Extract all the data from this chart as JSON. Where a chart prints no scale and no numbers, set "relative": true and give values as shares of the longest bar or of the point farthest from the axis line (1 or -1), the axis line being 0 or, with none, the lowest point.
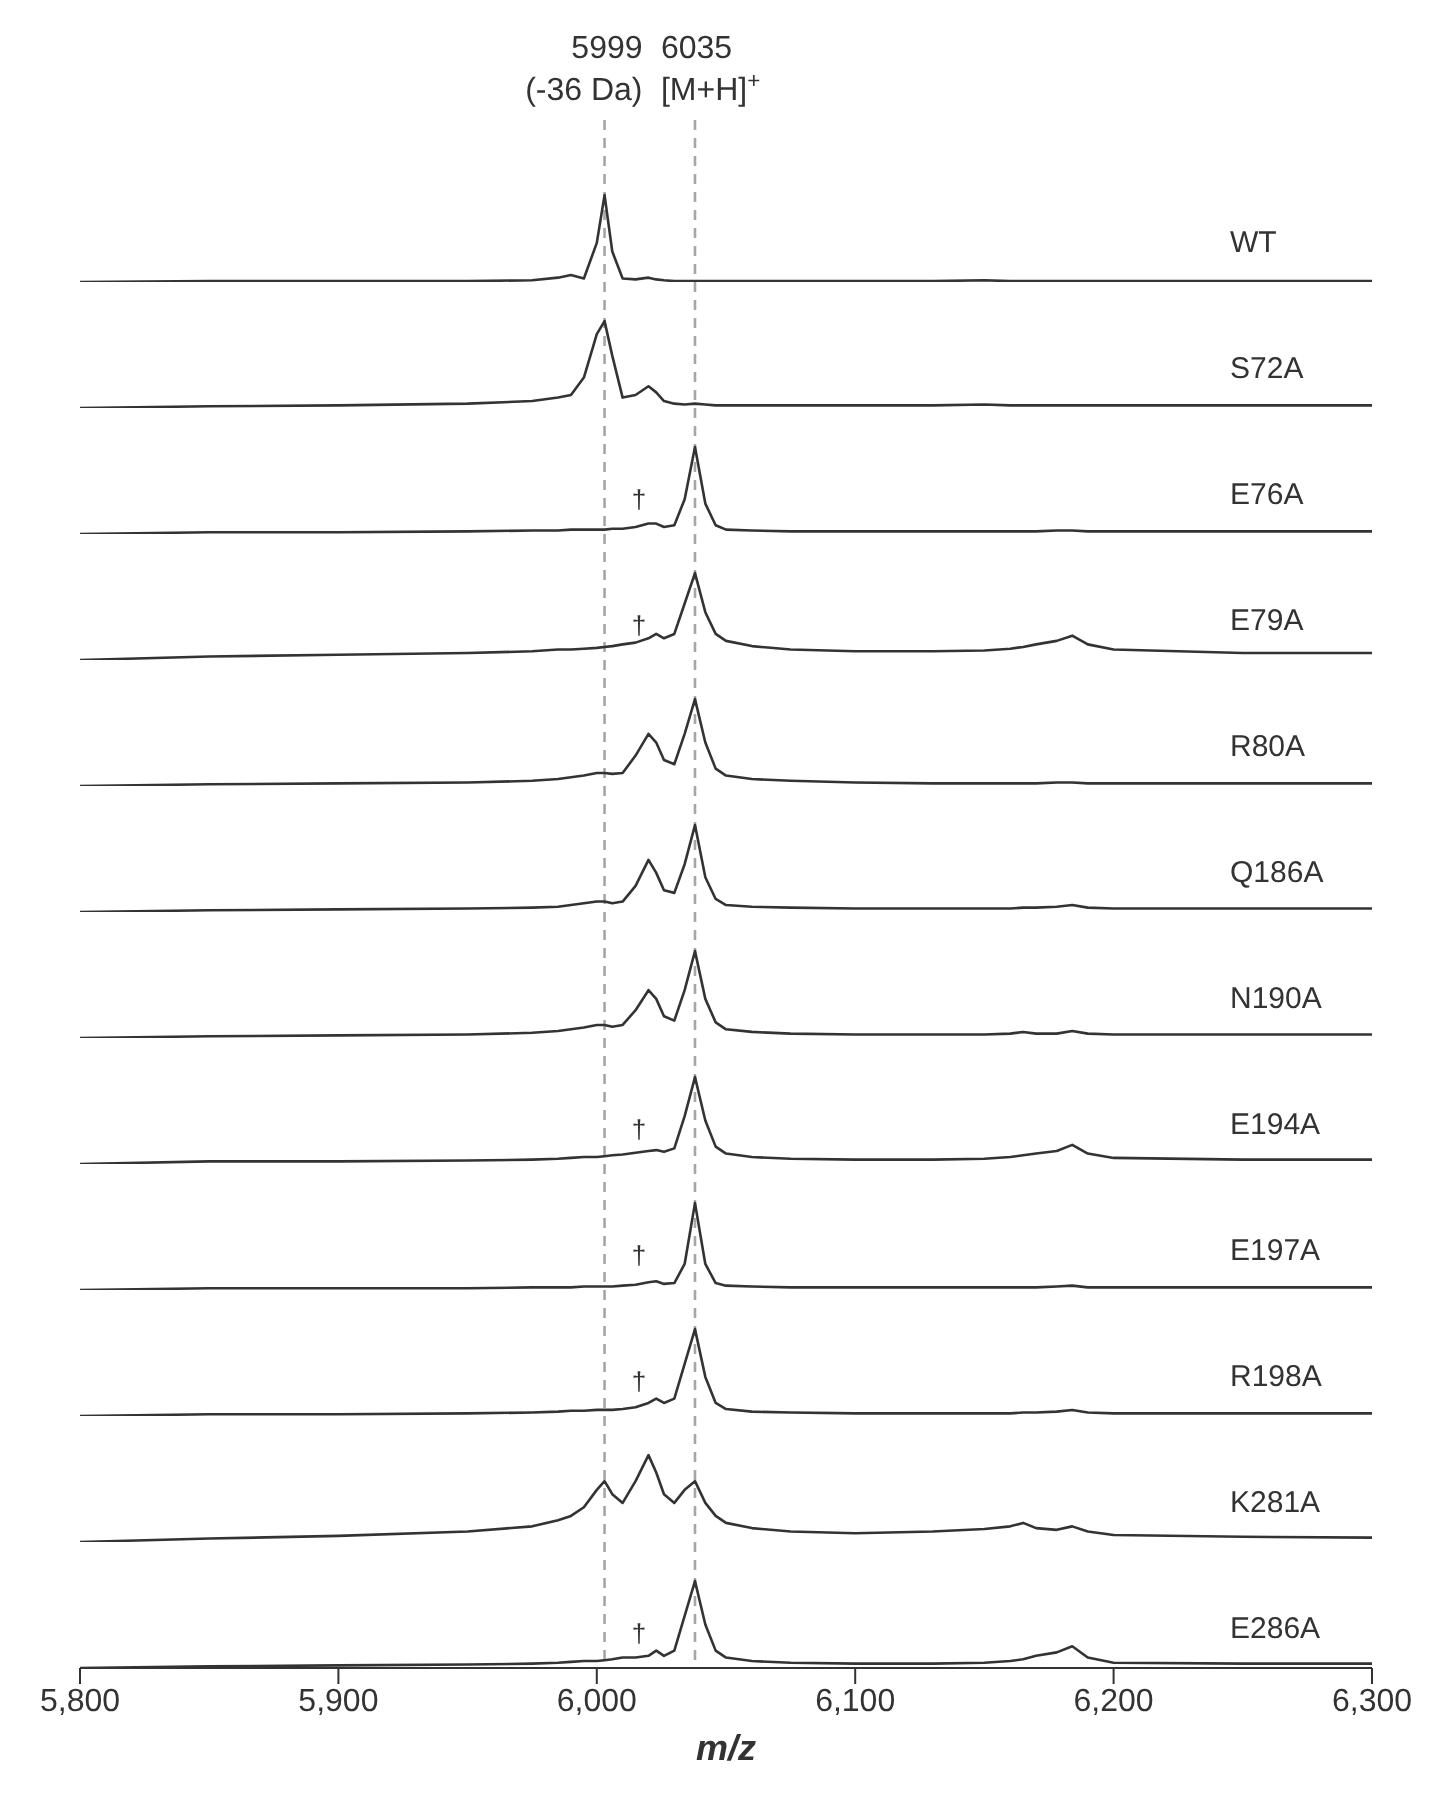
{
  "chart_data": [
    {
      "type": "line",
      "relative": true,
      "xlim": [
        5800,
        6300
      ],
      "tick_labels": false,
      "x": [
        5800,
        5850,
        5900,
        5950,
        5975,
        5985,
        5990,
        5995,
        6000,
        6003,
        6006,
        6010,
        6015,
        6020,
        6023,
        6026,
        6030,
        6034,
        6038,
        6042,
        6046,
        6050,
        6060,
        6075,
        6100,
        6130,
        6150,
        6160,
        6165,
        6170,
        6178,
        6184,
        6190,
        6200,
        6250,
        6300
      ],
      "series": [
        {
          "name": "WT",
          "color": "#333333",
          "values": [
            0,
            0.01,
            0.01,
            0.01,
            0.02,
            0.05,
            0.08,
            0.04,
            0.45,
            1,
            0.35,
            0.04,
            0.03,
            0.05,
            0.03,
            0.02,
            0.01,
            0.01,
            0.01,
            0.01,
            0.01,
            0.01,
            0.01,
            0.01,
            0.01,
            0.01,
            0.02,
            0.01,
            0.01,
            0.01,
            0.01,
            0.01,
            0.01,
            0.01,
            0.01,
            0.01
          ]
        }
      ],
      "ref_lines": [
        {
          "axis": "x",
          "value": 6003,
          "label": "5999\n(-36 Da)",
          "color": "#a6a6a6",
          "line_style": "dashed"
        },
        {
          "axis": "x",
          "value": 6038,
          "label": "6035\n[M+H]$^{+}$",
          "color": "#a6a6a6",
          "line_style": "dashed"
        }
      ]
    },
    {
      "type": "line",
      "relative": true,
      "xlim": [
        5800,
        6300
      ],
      "tick_labels": false,
      "x": [
        5800,
        5850,
        5900,
        5950,
        5975,
        5985,
        5990,
        5995,
        6000,
        6003,
        6006,
        6010,
        6015,
        6020,
        6023,
        6026,
        6030,
        6034,
        6038,
        6042,
        6046,
        6050,
        6060,
        6075,
        6100,
        6130,
        6150,
        6160,
        6165,
        6170,
        6178,
        6184,
        6190,
        6200,
        6250,
        6300
      ],
      "series": [
        {
          "name": "S72A",
          "color": "#333333",
          "values": [
            0,
            0.02,
            0.03,
            0.05,
            0.08,
            0.12,
            0.15,
            0.35,
            0.85,
            1,
            0.6,
            0.12,
            0.15,
            0.25,
            0.18,
            0.08,
            0.05,
            0.04,
            0.05,
            0.04,
            0.03,
            0.03,
            0.03,
            0.03,
            0.03,
            0.03,
            0.04,
            0.03,
            0.03,
            0.03,
            0.03,
            0.03,
            0.03,
            0.03,
            0.03,
            0.03
          ]
        }
      ],
      "ref_lines": [
        {
          "axis": "x",
          "value": 6003,
          "color": "#a6a6a6",
          "line_style": "dashed"
        },
        {
          "axis": "x",
          "value": 6038,
          "color": "#a6a6a6",
          "line_style": "dashed"
        }
      ]
    },
    {
      "type": "line",
      "relative": true,
      "xlim": [
        5800,
        6300
      ],
      "tick_labels": false,
      "x": [
        5800,
        5850,
        5900,
        5950,
        5975,
        5985,
        5990,
        5995,
        6000,
        6003,
        6006,
        6010,
        6015,
        6020,
        6023,
        6026,
        6030,
        6034,
        6038,
        6042,
        6046,
        6050,
        6060,
        6075,
        6100,
        6130,
        6150,
        6160,
        6165,
        6170,
        6178,
        6184,
        6190,
        6200,
        6250,
        6300
      ],
      "series": [
        {
          "name": "E76A",
          "color": "#333333",
          "values": [
            0,
            0.02,
            0.02,
            0.03,
            0.04,
            0.04,
            0.05,
            0.05,
            0.05,
            0.05,
            0.06,
            0.06,
            0.08,
            0.12,
            0.12,
            0.08,
            0.1,
            0.4,
            1,
            0.35,
            0.1,
            0.05,
            0.04,
            0.03,
            0.03,
            0.03,
            0.03,
            0.03,
            0.03,
            0.03,
            0.04,
            0.04,
            0.03,
            0.03,
            0.03,
            0.03
          ]
        }
      ],
      "ref_lines": [
        {
          "axis": "x",
          "value": 6003,
          "color": "#a6a6a6",
          "line_style": "dashed"
        },
        {
          "axis": "x",
          "value": 6038,
          "color": "#a6a6a6",
          "line_style": "dashed"
        }
      ],
      "annotations": [
        "†"
      ]
    },
    {
      "type": "line",
      "relative": true,
      "xlim": [
        5800,
        6300
      ],
      "tick_labels": false,
      "x": [
        5800,
        5850,
        5900,
        5950,
        5975,
        5985,
        5990,
        5995,
        6000,
        6003,
        6006,
        6010,
        6015,
        6020,
        6023,
        6026,
        6030,
        6034,
        6038,
        6042,
        6046,
        6050,
        6060,
        6075,
        6100,
        6130,
        6150,
        6160,
        6165,
        6170,
        6178,
        6184,
        6190,
        6200,
        6250,
        6300
      ],
      "series": [
        {
          "name": "E79A",
          "color": "#333333",
          "values": [
            0,
            0.04,
            0.06,
            0.08,
            0.1,
            0.12,
            0.12,
            0.13,
            0.14,
            0.15,
            0.16,
            0.18,
            0.2,
            0.25,
            0.3,
            0.25,
            0.3,
            0.65,
            1,
            0.55,
            0.3,
            0.22,
            0.16,
            0.12,
            0.1,
            0.1,
            0.11,
            0.13,
            0.15,
            0.18,
            0.22,
            0.28,
            0.18,
            0.12,
            0.08,
            0.08
          ]
        }
      ],
      "ref_lines": [
        {
          "axis": "x",
          "value": 6003,
          "color": "#a6a6a6",
          "line_style": "dashed"
        },
        {
          "axis": "x",
          "value": 6038,
          "color": "#a6a6a6",
          "line_style": "dashed"
        }
      ],
      "annotations": [
        "†"
      ]
    },
    {
      "type": "line",
      "relative": true,
      "xlim": [
        5800,
        6300
      ],
      "tick_labels": false,
      "x": [
        5800,
        5850,
        5900,
        5950,
        5975,
        5985,
        5990,
        5995,
        6000,
        6003,
        6006,
        6010,
        6015,
        6020,
        6023,
        6026,
        6030,
        6034,
        6038,
        6042,
        6046,
        6050,
        6060,
        6075,
        6100,
        6130,
        6150,
        6160,
        6165,
        6170,
        6178,
        6184,
        6190,
        6200,
        6250,
        6300
      ],
      "series": [
        {
          "name": "R80A",
          "color": "#333333",
          "values": [
            0,
            0.02,
            0.03,
            0.04,
            0.06,
            0.08,
            0.1,
            0.12,
            0.15,
            0.15,
            0.14,
            0.15,
            0.35,
            0.6,
            0.5,
            0.3,
            0.25,
            0.6,
            1,
            0.5,
            0.2,
            0.12,
            0.08,
            0.06,
            0.04,
            0.03,
            0.03,
            0.03,
            0.03,
            0.03,
            0.04,
            0.04,
            0.03,
            0.03,
            0.03,
            0.03
          ]
        }
      ],
      "ref_lines": [
        {
          "axis": "x",
          "value": 6003,
          "color": "#a6a6a6",
          "line_style": "dashed"
        },
        {
          "axis": "x",
          "value": 6038,
          "color": "#a6a6a6",
          "line_style": "dashed"
        }
      ]
    },
    {
      "type": "line",
      "relative": true,
      "xlim": [
        5800,
        6300
      ],
      "tick_labels": false,
      "x": [
        5800,
        5850,
        5900,
        5950,
        5975,
        5985,
        5990,
        5995,
        6000,
        6003,
        6006,
        6010,
        6015,
        6020,
        6023,
        6026,
        6030,
        6034,
        6038,
        6042,
        6046,
        6050,
        6060,
        6075,
        6100,
        6130,
        6150,
        6160,
        6165,
        6170,
        6178,
        6184,
        6190,
        6200,
        6250,
        6300
      ],
      "series": [
        {
          "name": "Q186A",
          "color": "#333333",
          "values": [
            0,
            0.02,
            0.03,
            0.04,
            0.05,
            0.06,
            0.08,
            0.1,
            0.12,
            0.12,
            0.1,
            0.12,
            0.3,
            0.6,
            0.45,
            0.25,
            0.22,
            0.55,
            1,
            0.4,
            0.15,
            0.08,
            0.06,
            0.05,
            0.04,
            0.04,
            0.04,
            0.04,
            0.05,
            0.05,
            0.06,
            0.08,
            0.05,
            0.04,
            0.04,
            0.04
          ]
        }
      ],
      "ref_lines": [
        {
          "axis": "x",
          "value": 6003,
          "color": "#a6a6a6",
          "line_style": "dashed"
        },
        {
          "axis": "x",
          "value": 6038,
          "color": "#a6a6a6",
          "line_style": "dashed"
        }
      ]
    },
    {
      "type": "line",
      "relative": true,
      "xlim": [
        5800,
        6300
      ],
      "tick_labels": false,
      "x": [
        5800,
        5850,
        5900,
        5950,
        5975,
        5985,
        5990,
        5995,
        6000,
        6003,
        6006,
        6010,
        6015,
        6020,
        6023,
        6026,
        6030,
        6034,
        6038,
        6042,
        6046,
        6050,
        6060,
        6075,
        6100,
        6130,
        6150,
        6160,
        6165,
        6170,
        6178,
        6184,
        6190,
        6200,
        6250,
        6300
      ],
      "series": [
        {
          "name": "N190A",
          "color": "#333333",
          "values": [
            0,
            0.02,
            0.03,
            0.04,
            0.06,
            0.08,
            0.1,
            0.12,
            0.15,
            0.15,
            0.13,
            0.15,
            0.32,
            0.55,
            0.45,
            0.25,
            0.2,
            0.55,
            1,
            0.45,
            0.18,
            0.1,
            0.07,
            0.05,
            0.04,
            0.04,
            0.04,
            0.05,
            0.07,
            0.05,
            0.05,
            0.08,
            0.05,
            0.04,
            0.04,
            0.04
          ]
        }
      ],
      "ref_lines": [
        {
          "axis": "x",
          "value": 6003,
          "color": "#a6a6a6",
          "line_style": "dashed"
        },
        {
          "axis": "x",
          "value": 6038,
          "color": "#a6a6a6",
          "line_style": "dashed"
        }
      ]
    },
    {
      "type": "line",
      "relative": true,
      "xlim": [
        5800,
        6300
      ],
      "tick_labels": false,
      "x": [
        5800,
        5850,
        5900,
        5950,
        5975,
        5985,
        5990,
        5995,
        6000,
        6003,
        6006,
        6010,
        6015,
        6020,
        6023,
        6026,
        6030,
        6034,
        6038,
        6042,
        6046,
        6050,
        6060,
        6075,
        6100,
        6130,
        6150,
        6160,
        6165,
        6170,
        6178,
        6184,
        6190,
        6200,
        6250,
        6300
      ],
      "series": [
        {
          "name": "E194A",
          "color": "#333333",
          "values": [
            0,
            0.03,
            0.03,
            0.04,
            0.05,
            0.06,
            0.07,
            0.08,
            0.08,
            0.09,
            0.1,
            0.11,
            0.13,
            0.15,
            0.16,
            0.14,
            0.18,
            0.55,
            1,
            0.5,
            0.2,
            0.12,
            0.08,
            0.06,
            0.05,
            0.05,
            0.06,
            0.08,
            0.1,
            0.12,
            0.15,
            0.22,
            0.12,
            0.07,
            0.05,
            0.05
          ]
        }
      ],
      "ref_lines": [
        {
          "axis": "x",
          "value": 6003,
          "color": "#a6a6a6",
          "line_style": "dashed"
        },
        {
          "axis": "x",
          "value": 6038,
          "color": "#a6a6a6",
          "line_style": "dashed"
        }
      ],
      "annotations": [
        "†"
      ]
    },
    {
      "type": "line",
      "relative": true,
      "xlim": [
        5800,
        6300
      ],
      "tick_labels": false,
      "x": [
        5800,
        5850,
        5900,
        5950,
        5975,
        5985,
        5990,
        5995,
        6000,
        6003,
        6006,
        6010,
        6015,
        6020,
        6023,
        6026,
        6030,
        6034,
        6038,
        6042,
        6046,
        6050,
        6060,
        6075,
        6100,
        6130,
        6150,
        6160,
        6165,
        6170,
        6178,
        6184,
        6190,
        6200,
        6250,
        6300
      ],
      "series": [
        {
          "name": "E197A",
          "color": "#333333",
          "values": [
            0,
            0.02,
            0.02,
            0.02,
            0.03,
            0.03,
            0.03,
            0.04,
            0.04,
            0.04,
            0.04,
            0.05,
            0.06,
            0.09,
            0.1,
            0.07,
            0.08,
            0.3,
            1,
            0.3,
            0.08,
            0.05,
            0.04,
            0.03,
            0.03,
            0.03,
            0.03,
            0.03,
            0.03,
            0.03,
            0.04,
            0.05,
            0.03,
            0.03,
            0.03,
            0.03
          ]
        }
      ],
      "ref_lines": [
        {
          "axis": "x",
          "value": 6003,
          "color": "#a6a6a6",
          "line_style": "dashed"
        },
        {
          "axis": "x",
          "value": 6038,
          "color": "#a6a6a6",
          "line_style": "dashed"
        }
      ],
      "annotations": [
        "†"
      ]
    },
    {
      "type": "line",
      "relative": true,
      "xlim": [
        5800,
        6300
      ],
      "tick_labels": false,
      "x": [
        5800,
        5850,
        5900,
        5950,
        5975,
        5985,
        5990,
        5995,
        6000,
        6003,
        6006,
        6010,
        6015,
        6020,
        6023,
        6026,
        6030,
        6034,
        6038,
        6042,
        6046,
        6050,
        6060,
        6075,
        6100,
        6130,
        6150,
        6160,
        6165,
        6170,
        6178,
        6184,
        6190,
        6200,
        6250,
        6300
      ],
      "series": [
        {
          "name": "R198A",
          "color": "#333333",
          "values": [
            0,
            0.02,
            0.02,
            0.03,
            0.04,
            0.05,
            0.06,
            0.06,
            0.07,
            0.07,
            0.07,
            0.08,
            0.1,
            0.15,
            0.2,
            0.15,
            0.2,
            0.6,
            1,
            0.45,
            0.15,
            0.08,
            0.05,
            0.04,
            0.03,
            0.03,
            0.03,
            0.03,
            0.04,
            0.04,
            0.05,
            0.07,
            0.04,
            0.03,
            0.03,
            0.03
          ]
        }
      ],
      "ref_lines": [
        {
          "axis": "x",
          "value": 6003,
          "color": "#a6a6a6",
          "line_style": "dashed"
        },
        {
          "axis": "x",
          "value": 6038,
          "color": "#a6a6a6",
          "line_style": "dashed"
        }
      ],
      "annotations": [
        "†"
      ]
    },
    {
      "type": "line",
      "relative": true,
      "xlim": [
        5800,
        6300
      ],
      "tick_labels": false,
      "x": [
        5800,
        5850,
        5900,
        5950,
        5975,
        5985,
        5990,
        5995,
        6000,
        6003,
        6006,
        6010,
        6015,
        6020,
        6023,
        6026,
        6030,
        6034,
        6038,
        6042,
        6046,
        6050,
        6060,
        6075,
        6100,
        6130,
        6150,
        6160,
        6165,
        6170,
        6178,
        6184,
        6190,
        6200,
        6250,
        6300
      ],
      "series": [
        {
          "name": "K281A",
          "color": "#333333",
          "values": [
            0,
            0.04,
            0.07,
            0.12,
            0.18,
            0.25,
            0.3,
            0.4,
            0.6,
            0.7,
            0.55,
            0.45,
            0.7,
            1,
            0.8,
            0.55,
            0.45,
            0.6,
            0.7,
            0.45,
            0.3,
            0.22,
            0.16,
            0.12,
            0.1,
            0.12,
            0.15,
            0.18,
            0.22,
            0.16,
            0.14,
            0.18,
            0.12,
            0.08,
            0.06,
            0.05
          ]
        }
      ],
      "ref_lines": [
        {
          "axis": "x",
          "value": 6003,
          "color": "#a6a6a6",
          "line_style": "dashed"
        },
        {
          "axis": "x",
          "value": 6038,
          "color": "#a6a6a6",
          "line_style": "dashed"
        }
      ]
    },
    {
      "type": "line",
      "relative": true,
      "xlim": [
        5800,
        6300
      ],
      "tick_labels": "x",
      "xlabel": "m/z",
      "xticks": [
        {
          "value": 5800,
          "label": "5,800"
        },
        {
          "value": 5900,
          "label": "5,900"
        },
        {
          "value": 6000,
          "label": "6,000"
        },
        {
          "value": 6100,
          "label": "6,100"
        },
        {
          "value": 6200,
          "label": "6,200"
        },
        {
          "value": 6300,
          "label": "6,300"
        }
      ],
      "x": [
        5800,
        5850,
        5900,
        5950,
        5975,
        5985,
        5990,
        5995,
        6000,
        6003,
        6006,
        6010,
        6015,
        6020,
        6023,
        6026,
        6030,
        6034,
        6038,
        6042,
        6046,
        6050,
        6060,
        6075,
        6100,
        6130,
        6150,
        6160,
        6165,
        6170,
        6178,
        6184,
        6190,
        6200,
        6250,
        6300
      ],
      "series": [
        {
          "name": "E286A",
          "color": "#333333",
          "values": [
            0,
            0.02,
            0.03,
            0.04,
            0.05,
            0.06,
            0.07,
            0.08,
            0.08,
            0.09,
            0.1,
            0.12,
            0.12,
            0.14,
            0.2,
            0.14,
            0.2,
            0.6,
            1,
            0.5,
            0.2,
            0.12,
            0.08,
            0.06,
            0.05,
            0.05,
            0.06,
            0.08,
            0.1,
            0.14,
            0.18,
            0.25,
            0.12,
            0.06,
            0.05,
            0.05
          ]
        }
      ],
      "ref_lines": [
        {
          "axis": "x",
          "value": 6003,
          "color": "#a6a6a6",
          "line_style": "dashed"
        },
        {
          "axis": "x",
          "value": 6038,
          "color": "#a6a6a6",
          "line_style": "dashed"
        }
      ],
      "annotations": [
        "†"
      ]
    }
  ]
}
